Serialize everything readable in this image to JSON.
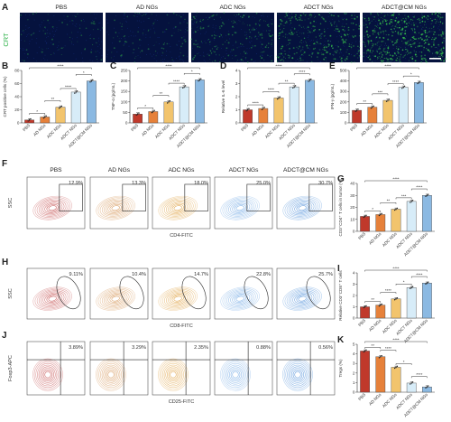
{
  "groups": [
    "PBS",
    "AD NGs",
    "ADC NGs",
    "ADCT NGs",
    "ADCT@CM NGs"
  ],
  "colors": {
    "bar_fills": [
      "#c0392b",
      "#e6813a",
      "#f2c46d",
      "#d7ecf8",
      "#8bb9e2"
    ],
    "flow_colors": [
      "#c85a5a",
      "#d79a5e",
      "#e0a447",
      "#7aaee6",
      "#5c98dc"
    ],
    "crt_green": "#36c24c",
    "micro_bg": "#05123e"
  },
  "panel_a": {
    "letter": "A",
    "row_label": "CRT",
    "titles": [
      "PBS",
      "AD NGs",
      "ADC NGs",
      "ADCT NGs",
      "ADCT@CM NGs"
    ],
    "green_intensity": [
      0.05,
      0.08,
      0.22,
      0.42,
      0.7
    ]
  },
  "bar_panels": [
    {
      "id": "B",
      "letter": "B",
      "ylabel": "CRT positive cells (%)",
      "ymax": 80,
      "ticks": [
        0,
        20,
        40,
        60,
        80
      ],
      "values": [
        4.5,
        9,
        24,
        47,
        64
      ],
      "sig": [
        "*",
        "**",
        "****",
        "*",
        "****"
      ]
    },
    {
      "id": "C",
      "letter": "C",
      "ylabel": "TNF-α (pg/mL)",
      "ymax": 250,
      "ticks": [
        0,
        50,
        100,
        150,
        200,
        250
      ],
      "values": [
        42,
        54,
        100,
        172,
        205
      ],
      "sig": [
        "*",
        "**",
        "****",
        "*",
        "****"
      ]
    },
    {
      "id": "D",
      "letter": "D",
      "ylabel": "Relative IL-6 level",
      "ymax": 4,
      "ticks": [
        0,
        1,
        2,
        3,
        4
      ],
      "values": [
        1.0,
        1.1,
        1.9,
        2.75,
        3.25
      ],
      "sig": [
        "****",
        "****",
        "**",
        "****",
        "****"
      ]
    },
    {
      "id": "E",
      "letter": "E",
      "ylabel": "IFN-γ (pg/mL)",
      "ymax": 500,
      "ticks": [
        0,
        100,
        200,
        300,
        400,
        500
      ],
      "values": [
        120,
        150,
        215,
        340,
        385
      ],
      "sig": [
        "**",
        "***",
        "****",
        "*",
        "****"
      ]
    },
    {
      "id": "G",
      "letter": "G",
      "ylabel": "CD3⁺CD4⁺ T cells in tumor (%)",
      "ymax": 40,
      "ticks": [
        0,
        10,
        20,
        30,
        40
      ],
      "values": [
        12.5,
        14,
        18.5,
        25,
        30
      ],
      "sig": [
        "*",
        "**",
        "***",
        "****",
        "****"
      ]
    },
    {
      "id": "I",
      "letter": "I",
      "ylabel": "Relative CD3⁺CD8⁺ T cells",
      "ymax": 4,
      "ticks": [
        0,
        1,
        2,
        3,
        4
      ],
      "values": [
        1.0,
        1.15,
        1.7,
        2.7,
        3.1
      ],
      "sig": [
        "**",
        "****",
        "*",
        "****",
        "****"
      ]
    },
    {
      "id": "K",
      "letter": "K",
      "ylabel": "Tregs (%)",
      "ymax": 5,
      "ticks": [
        0,
        1,
        2,
        3,
        4,
        5
      ],
      "values": [
        4.3,
        3.7,
        2.6,
        0.95,
        0.55
      ],
      "sig": [
        "**",
        "****",
        "*",
        "****",
        "****"
      ]
    }
  ],
  "flow_rows": [
    {
      "id": "F",
      "letter": "F",
      "ylabel": "SSC",
      "xlabel": "CD4-FITC",
      "show_titles": true,
      "titles": [
        "PBS",
        "AD NGs",
        "ADC NGs",
        "ADCT NGs",
        "ADCT@CM NGs"
      ],
      "percents": [
        "12.9%",
        "13.3%",
        "18.0%",
        "25.0%",
        "30.7%"
      ],
      "gate": "rect"
    },
    {
      "id": "H",
      "letter": "H",
      "ylabel": "SSC",
      "xlabel": "CD8-FITC",
      "show_titles": false,
      "titles": [],
      "percents": [
        "9.11%",
        "10.4%",
        "14.7%",
        "22.8%",
        "25.7%"
      ],
      "gate": "ellipse"
    },
    {
      "id": "J",
      "letter": "J",
      "ylabel": "Foxp3-APC",
      "xlabel": "CD25-FITC",
      "show_titles": false,
      "titles": [],
      "percents": [
        "3.89%",
        "3.29%",
        "2.35%",
        "0.88%",
        "0.56%"
      ],
      "gate": "quad"
    }
  ]
}
